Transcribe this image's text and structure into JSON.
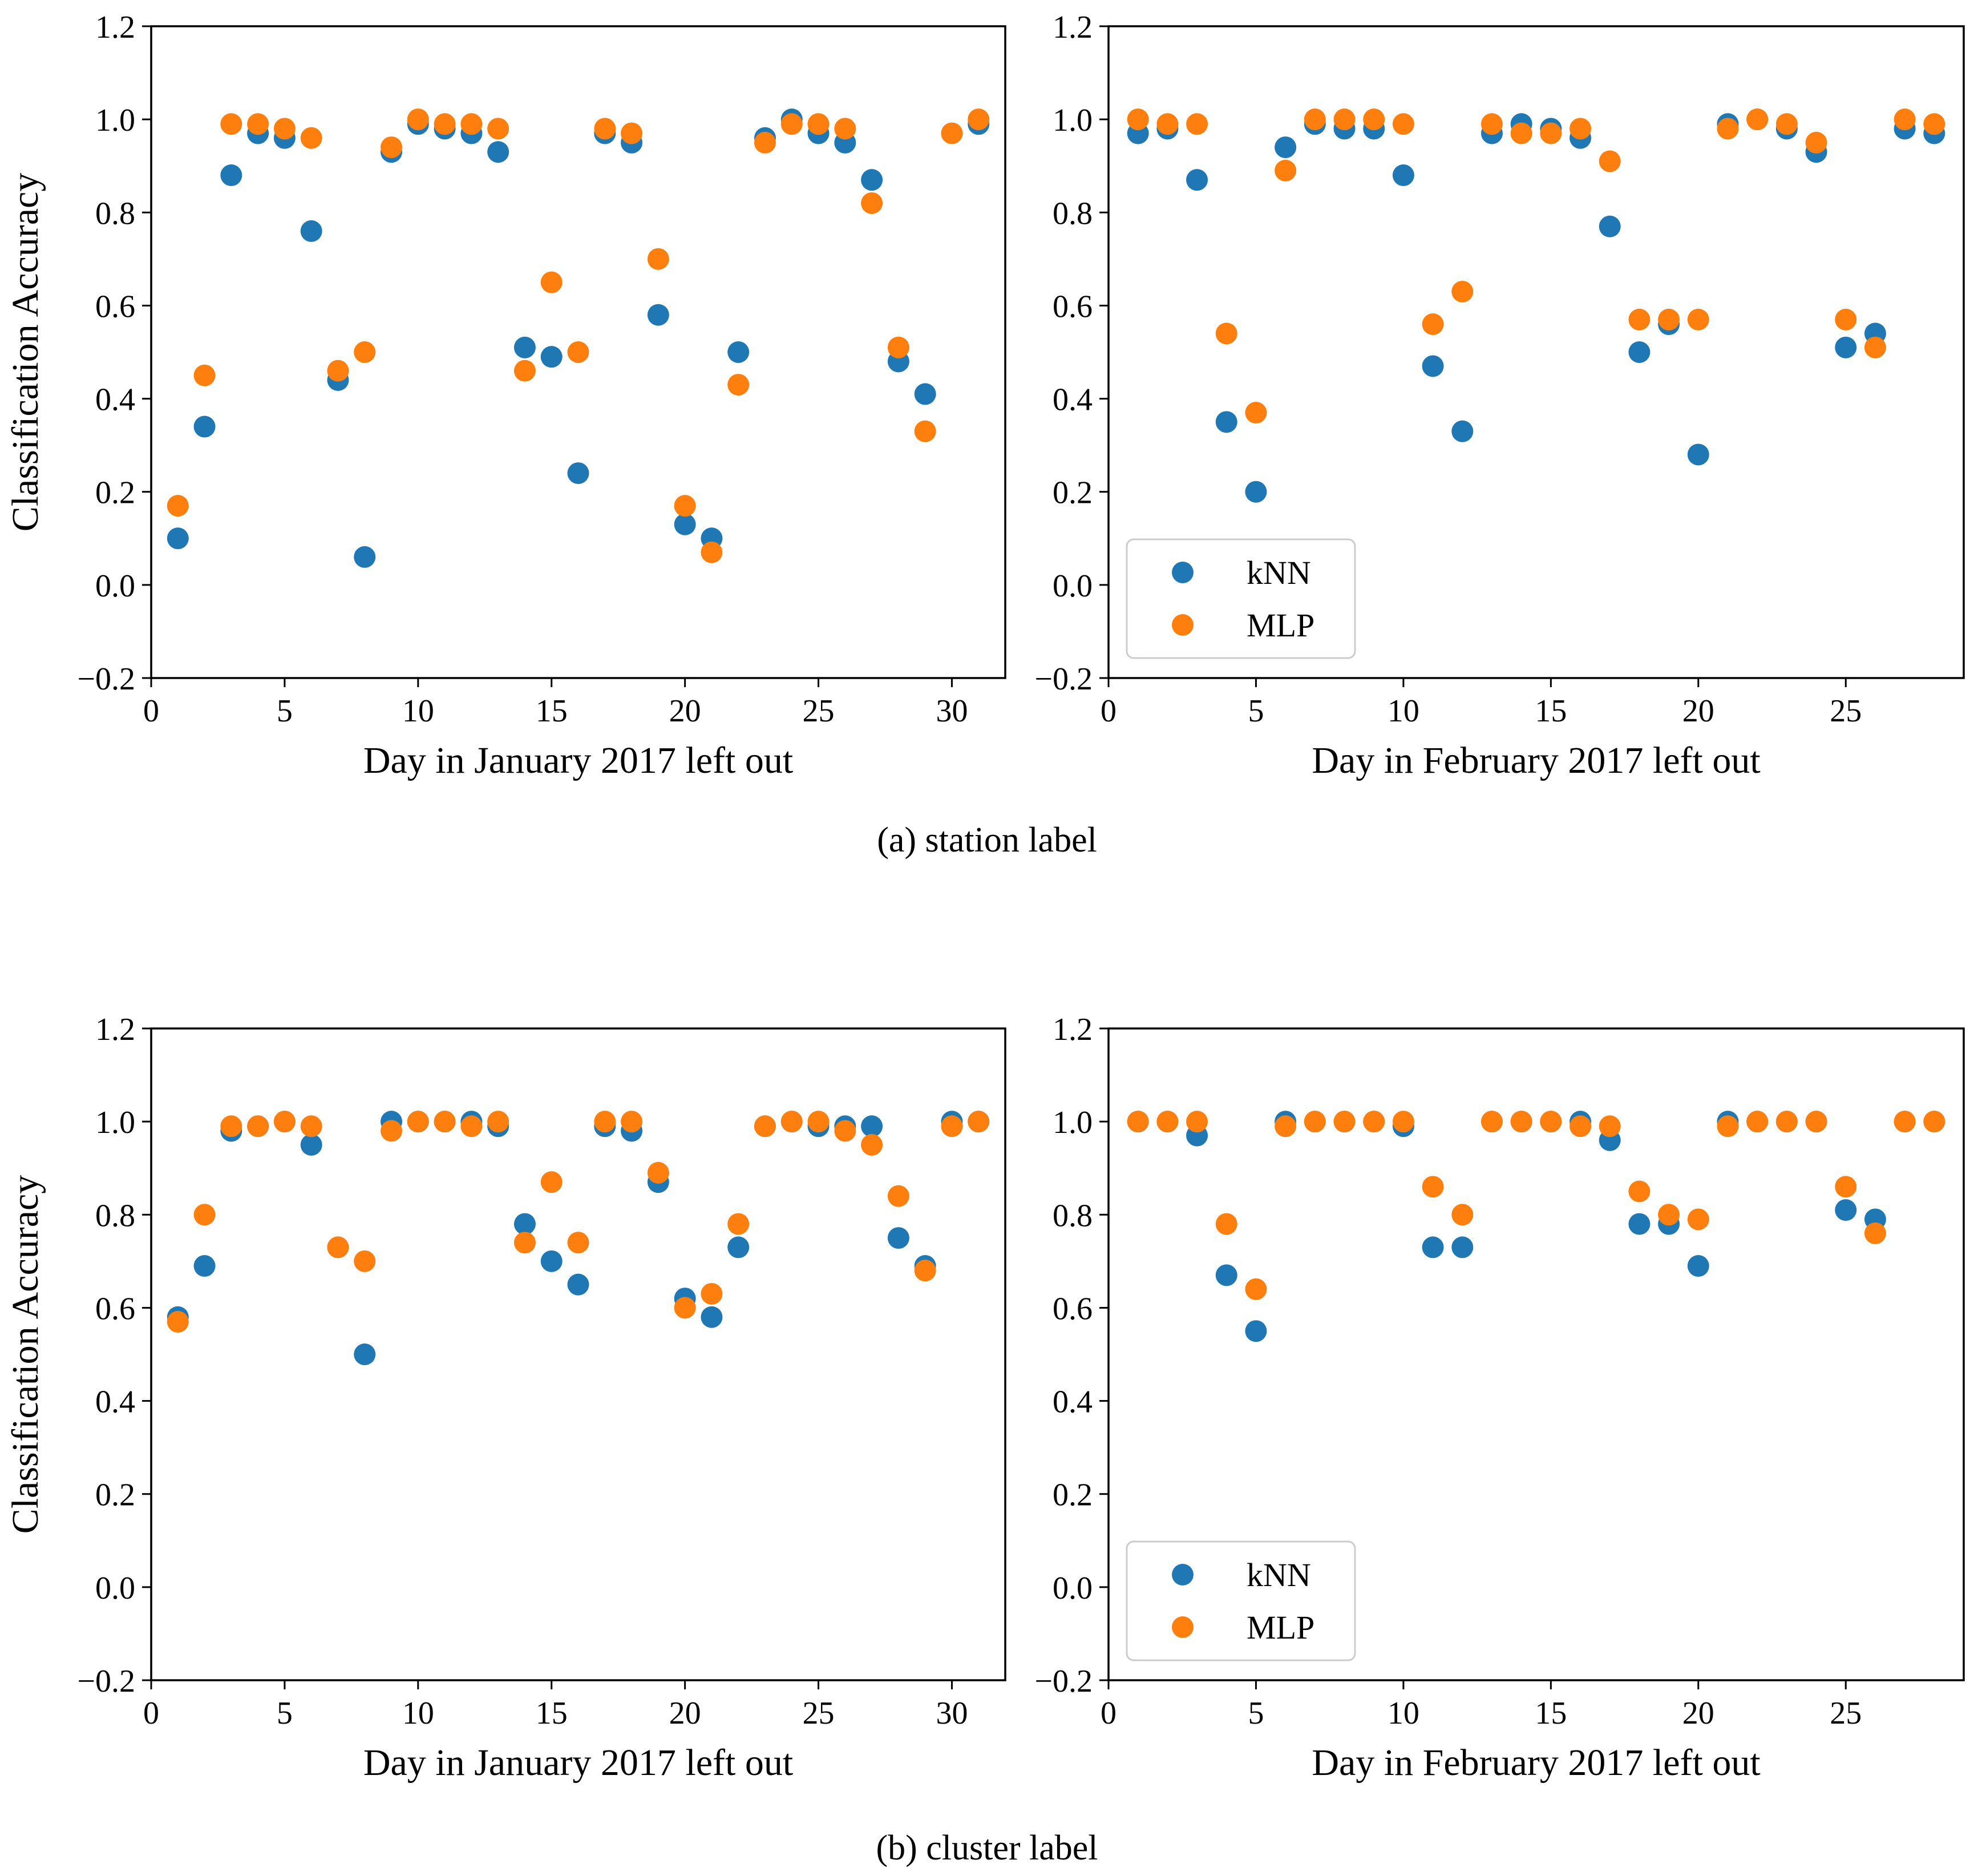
{
  "colors": {
    "knn": "#1f77b4",
    "mlp": "#ff7f0e"
  },
  "captions": {
    "a": "(a)  station label",
    "b": "(b)  cluster label"
  },
  "chart_data": [
    {
      "id": "a-jan",
      "type": "scatter",
      "xlabel": "Day in January 2017 left out",
      "ylabel": "Classification Accuracy",
      "xlim": [
        0,
        32
      ],
      "ylim": [
        -0.2,
        1.2
      ],
      "xticks": [
        0,
        5,
        10,
        15,
        20,
        25,
        30
      ],
      "yticks": [
        -0.2,
        0.0,
        0.2,
        0.4,
        0.6,
        0.8,
        1.0,
        1.2
      ],
      "x": [
        1,
        2,
        3,
        4,
        5,
        6,
        7,
        8,
        9,
        10,
        11,
        12,
        13,
        14,
        15,
        16,
        17,
        18,
        19,
        20,
        21,
        22,
        23,
        24,
        25,
        26,
        27,
        28,
        29,
        30,
        31
      ],
      "series": [
        {
          "name": "kNN",
          "color": "#1f77b4",
          "values": [
            0.1,
            0.34,
            0.88,
            0.97,
            0.96,
            0.76,
            0.44,
            0.06,
            0.93,
            0.99,
            0.98,
            0.97,
            0.93,
            0.51,
            0.49,
            0.24,
            0.97,
            0.95,
            0.58,
            0.13,
            0.1,
            0.5,
            0.96,
            1.0,
            0.97,
            0.95,
            0.87,
            0.48,
            0.41,
            null,
            0.99
          ]
        },
        {
          "name": "MLP",
          "color": "#ff7f0e",
          "values": [
            0.17,
            0.45,
            0.99,
            0.99,
            0.98,
            0.96,
            0.46,
            0.5,
            0.94,
            1.0,
            0.99,
            0.99,
            0.98,
            0.46,
            0.65,
            0.5,
            0.98,
            0.97,
            0.7,
            0.17,
            0.07,
            0.43,
            0.95,
            0.99,
            0.99,
            0.98,
            0.82,
            0.51,
            0.33,
            0.97,
            1.0
          ]
        }
      ]
    },
    {
      "id": "a-feb",
      "type": "scatter",
      "xlabel": "Day in February 2017 left out",
      "ylabel": "",
      "xlim": [
        0,
        29
      ],
      "ylim": [
        -0.2,
        1.2
      ],
      "xticks": [
        0,
        5,
        10,
        15,
        20,
        25
      ],
      "yticks": [
        -0.2,
        0.0,
        0.2,
        0.4,
        0.6,
        0.8,
        1.0,
        1.2
      ],
      "legend": {
        "placement": "lower-left",
        "entries": [
          "kNN",
          "MLP"
        ]
      },
      "x": [
        1,
        2,
        3,
        4,
        5,
        6,
        7,
        8,
        9,
        10,
        11,
        12,
        13,
        14,
        15,
        16,
        17,
        18,
        19,
        20,
        21,
        22,
        23,
        24,
        25,
        26,
        27,
        28
      ],
      "series": [
        {
          "name": "kNN",
          "color": "#1f77b4",
          "values": [
            0.97,
            0.98,
            0.87,
            0.35,
            0.2,
            0.94,
            0.99,
            0.98,
            0.98,
            0.88,
            0.47,
            0.33,
            0.97,
            0.99,
            0.98,
            0.96,
            0.77,
            0.5,
            0.56,
            0.28,
            0.99,
            1.0,
            0.98,
            0.93,
            0.51,
            0.54,
            0.98,
            0.97
          ]
        },
        {
          "name": "MLP",
          "color": "#ff7f0e",
          "values": [
            1.0,
            0.99,
            0.99,
            0.54,
            0.37,
            0.89,
            1.0,
            1.0,
            1.0,
            0.99,
            0.56,
            0.63,
            0.99,
            0.97,
            0.97,
            0.98,
            0.91,
            0.57,
            0.57,
            0.57,
            0.98,
            1.0,
            0.99,
            0.95,
            0.57,
            0.51,
            1.0,
            0.99
          ]
        }
      ]
    },
    {
      "id": "b-jan",
      "type": "scatter",
      "xlabel": "Day in January 2017 left out",
      "ylabel": "Classification Accuracy",
      "xlim": [
        0,
        32
      ],
      "ylim": [
        -0.2,
        1.2
      ],
      "xticks": [
        0,
        5,
        10,
        15,
        20,
        25,
        30
      ],
      "yticks": [
        -0.2,
        0.0,
        0.2,
        0.4,
        0.6,
        0.8,
        1.0,
        1.2
      ],
      "x": [
        1,
        2,
        3,
        4,
        5,
        6,
        7,
        8,
        9,
        10,
        11,
        12,
        13,
        14,
        15,
        16,
        17,
        18,
        19,
        20,
        21,
        22,
        23,
        24,
        25,
        26,
        27,
        28,
        29,
        30,
        31
      ],
      "series": [
        {
          "name": "kNN",
          "color": "#1f77b4",
          "values": [
            0.58,
            0.69,
            0.98,
            0.99,
            1.0,
            0.95,
            0.73,
            0.5,
            1.0,
            1.0,
            1.0,
            1.0,
            0.99,
            0.78,
            0.7,
            0.65,
            0.99,
            0.98,
            0.87,
            0.62,
            0.58,
            0.73,
            0.99,
            1.0,
            0.99,
            0.99,
            0.99,
            0.75,
            0.69,
            1.0,
            1.0
          ]
        },
        {
          "name": "MLP",
          "color": "#ff7f0e",
          "values": [
            0.57,
            0.8,
            0.99,
            0.99,
            1.0,
            0.99,
            0.73,
            0.7,
            0.98,
            1.0,
            1.0,
            0.99,
            1.0,
            0.74,
            0.87,
            0.74,
            1.0,
            1.0,
            0.89,
            0.6,
            0.63,
            0.78,
            0.99,
            1.0,
            1.0,
            0.98,
            0.95,
            0.84,
            0.68,
            0.99,
            1.0
          ]
        }
      ]
    },
    {
      "id": "b-feb",
      "type": "scatter",
      "xlabel": "Day in February 2017 left out",
      "ylabel": "",
      "xlim": [
        0,
        29
      ],
      "ylim": [
        -0.2,
        1.2
      ],
      "xticks": [
        0,
        5,
        10,
        15,
        20,
        25
      ],
      "yticks": [
        -0.2,
        0.0,
        0.2,
        0.4,
        0.6,
        0.8,
        1.0,
        1.2
      ],
      "legend": {
        "placement": "lower-left",
        "entries": [
          "kNN",
          "MLP"
        ]
      },
      "x": [
        1,
        2,
        3,
        4,
        5,
        6,
        7,
        8,
        9,
        10,
        11,
        12,
        13,
        14,
        15,
        16,
        17,
        18,
        19,
        20,
        21,
        22,
        23,
        24,
        25,
        26,
        27,
        28
      ],
      "series": [
        {
          "name": "kNN",
          "color": "#1f77b4",
          "values": [
            1.0,
            1.0,
            0.97,
            0.67,
            0.55,
            1.0,
            1.0,
            1.0,
            1.0,
            0.99,
            0.73,
            0.73,
            1.0,
            1.0,
            1.0,
            1.0,
            0.96,
            0.78,
            0.78,
            0.69,
            1.0,
            1.0,
            1.0,
            1.0,
            0.81,
            0.79,
            1.0,
            1.0
          ]
        },
        {
          "name": "MLP",
          "color": "#ff7f0e",
          "values": [
            1.0,
            1.0,
            1.0,
            0.78,
            0.64,
            0.99,
            1.0,
            1.0,
            1.0,
            1.0,
            0.86,
            0.8,
            1.0,
            1.0,
            1.0,
            0.99,
            0.99,
            0.85,
            0.8,
            0.79,
            0.99,
            1.0,
            1.0,
            1.0,
            0.86,
            0.76,
            1.0,
            1.0
          ]
        }
      ]
    }
  ]
}
